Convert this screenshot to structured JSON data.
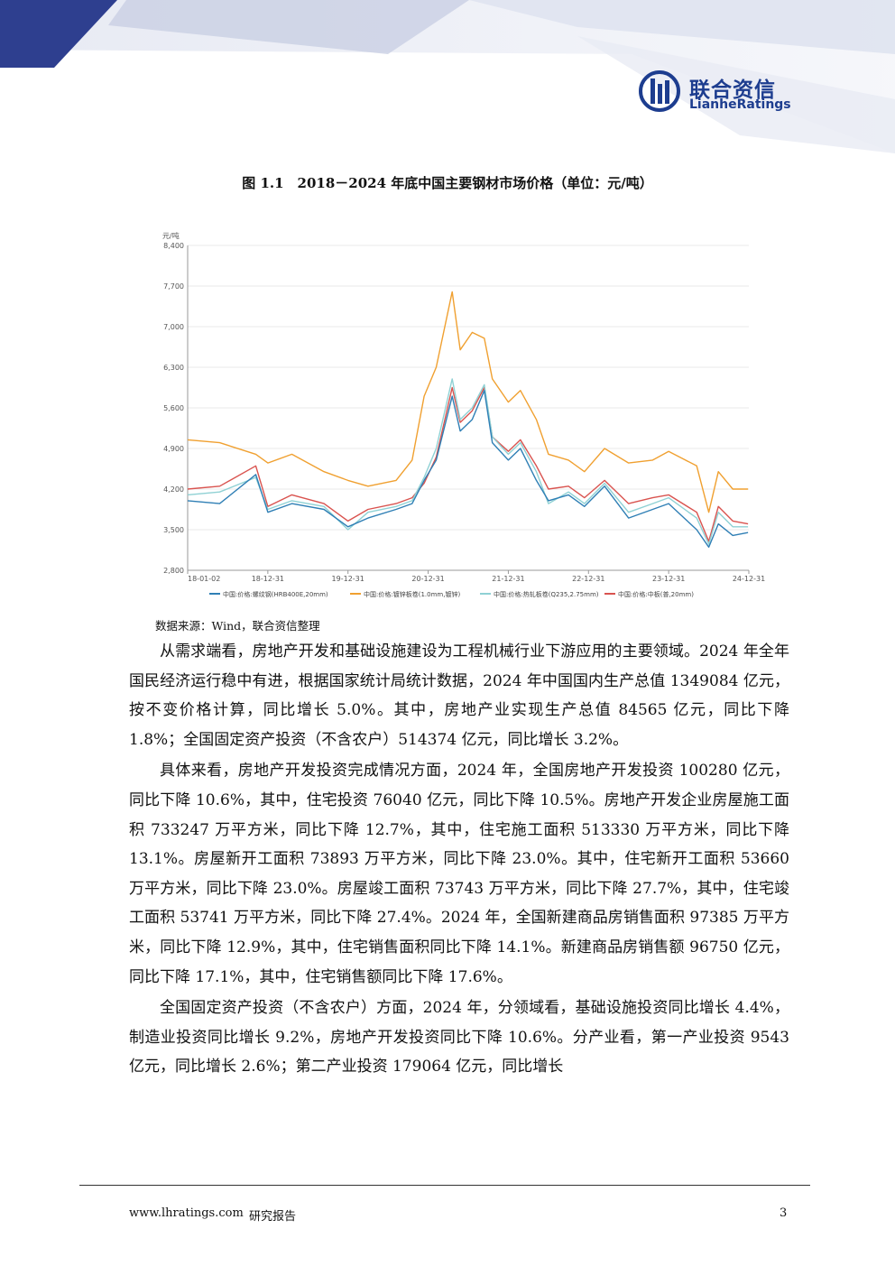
{
  "header": {
    "logo_cn": "联合资信",
    "logo_en": "LianheRatings"
  },
  "figure": {
    "title": "图 1.1　2018－2024 年底中国主要钢材市场价格（单位：元/吨）",
    "source": "数据来源：Wind，联合资信整理"
  },
  "chart_data": {
    "type": "line",
    "ylabel": "元/吨",
    "ylim": [
      2800,
      8400
    ],
    "yticks": [
      "8,400",
      "7,700",
      "7,000",
      "6,300",
      "5,600",
      "4,900",
      "4,200",
      "3,500",
      "2,800"
    ],
    "xticks": [
      "18-01-02",
      "18-12-31",
      "19-12-31",
      "20-12-31",
      "21-12-31",
      "22-12-31",
      "23-12-31",
      "24-12-31"
    ],
    "legend_position": "bottom",
    "colors": [
      "#2f7fb5",
      "#f0a030",
      "#8fd1d4",
      "#d9534f"
    ],
    "x": [
      2018.0,
      2018.4,
      2018.85,
      2019.0,
      2019.3,
      2019.7,
      2020.0,
      2020.25,
      2020.6,
      2020.8,
      2020.95,
      2021.1,
      2021.3,
      2021.4,
      2021.55,
      2021.7,
      2021.8,
      2022.0,
      2022.15,
      2022.35,
      2022.5,
      2022.75,
      2022.95,
      2023.2,
      2023.5,
      2023.8,
      2024.0,
      2024.35,
      2024.5,
      2024.62,
      2024.8,
      2024.99
    ],
    "series": [
      {
        "name": "中国:价格:螺纹钢(HRB400E,20mm)",
        "values": [
          4000,
          3950,
          4450,
          3800,
          3950,
          3850,
          3550,
          3700,
          3850,
          3950,
          4350,
          4700,
          5800,
          5200,
          5400,
          5900,
          5000,
          4700,
          4900,
          4350,
          4000,
          4100,
          3900,
          4250,
          3700,
          3850,
          3950,
          3500,
          3200,
          3600,
          3400,
          3450
        ]
      },
      {
        "name": "中国:价格:镀锌板卷(1.0mm,镀锌)",
        "values": [
          5050,
          5000,
          4800,
          4650,
          4800,
          4500,
          4350,
          4250,
          4350,
          4700,
          5800,
          6300,
          7600,
          6600,
          6900,
          6800,
          6100,
          5700,
          5900,
          5400,
          4800,
          4700,
          4500,
          4900,
          4650,
          4700,
          4850,
          4600,
          3800,
          4500,
          4200,
          4200
        ]
      },
      {
        "name": "中国:价格:热轧板卷(Q235,2.75mm)",
        "values": [
          4100,
          4150,
          4400,
          3850,
          4000,
          3900,
          3500,
          3800,
          3900,
          4000,
          4400,
          4900,
          6100,
          5400,
          5600,
          6000,
          5100,
          4800,
          5000,
          4500,
          3950,
          4150,
          3950,
          4300,
          3800,
          3950,
          4050,
          3700,
          3250,
          3800,
          3550,
          3550
        ]
      },
      {
        "name": "中国:价格:中板(普,20mm)",
        "values": [
          4200,
          4250,
          4600,
          3900,
          4100,
          3950,
          3650,
          3850,
          3950,
          4050,
          4300,
          4750,
          5950,
          5350,
          5550,
          5950,
          5100,
          4850,
          5050,
          4600,
          4200,
          4250,
          4050,
          4350,
          3950,
          4050,
          4100,
          3800,
          3300,
          3900,
          3650,
          3600
        ]
      }
    ]
  },
  "paragraphs": [
    "从需求端看，房地产开发和基础设施建设为工程机械行业下游应用的主要领域。2024 年全年国民经济运行稳中有进，根据国家统计局统计数据，2024 年中国国内生产总值 1349084 亿元，按不变价格计算，同比增长 5.0%。其中，房地产业实现生产总值 84565 亿元，同比下降 1.8%；全国固定资产投资（不含农户）514374 亿元，同比增长 3.2%。",
    "具体来看，房地产开发投资完成情况方面，2024 年，全国房地产开发投资 100280 亿元，同比下降 10.6%，其中，住宅投资 76040 亿元，同比下降 10.5%。房地产开发企业房屋施工面积 733247 万平方米，同比下降 12.7%，其中，住宅施工面积 513330 万平方米，同比下降 13.1%。房屋新开工面积 73893 万平方米，同比下降 23.0%。其中，住宅新开工面积 53660 万平方米，同比下降 23.0%。房屋竣工面积 73743 万平方米，同比下降 27.7%，其中，住宅竣工面积 53741 万平方米，同比下降 27.4%。2024 年，全国新建商品房销售面积 97385 万平方米，同比下降 12.9%，其中，住宅销售面积同比下降 14.1%。新建商品房销售额 96750 亿元，同比下降 17.1%，其中，住宅销售额同比下降 17.6%。",
    "全国固定资产投资（不含农户）方面，2024 年，分领域看，基础设施投资同比增长 4.4%，制造业投资同比增长 9.2%，房地产开发投资同比下降 10.6%。分产业看，第一产业投资 9543 亿元，同比增长 2.6%；第二产业投资 179064 亿元，同比增长"
  ],
  "footer": {
    "url": "www.lhratings.com",
    "label": "研究报告",
    "page": "3"
  }
}
